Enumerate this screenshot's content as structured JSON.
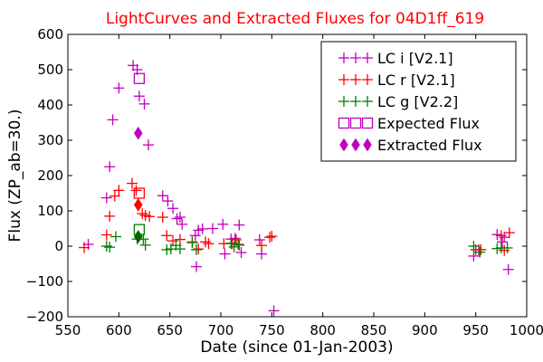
{
  "chart_data": {
    "type": "scatter",
    "title": "LightCurves and Extracted Fluxes for 04D1ff_619",
    "title_color": "#ff0000",
    "xlabel": "Date (since 01-Jan-2003)",
    "ylabel": "Flux (ZP_ab=30.)",
    "xlim": [
      550,
      1000
    ],
    "ylim": [
      -200,
      600
    ],
    "xticks": [
      550,
      600,
      650,
      700,
      750,
      800,
      850,
      900,
      950,
      1000
    ],
    "yticks": [
      -200,
      -100,
      0,
      100,
      200,
      300,
      400,
      500,
      600
    ],
    "grid": false,
    "legend_position": "top-right",
    "series": [
      {
        "name": "LC i [V2.1]",
        "marker": "plus",
        "color": "#bf00bf",
        "points": [
          [
            570,
            5
          ],
          [
            588,
            137
          ],
          [
            591,
            225
          ],
          [
            594,
            358
          ],
          [
            600,
            448
          ],
          [
            614,
            512
          ],
          [
            618,
            500
          ],
          [
            620,
            425
          ],
          [
            625,
            403
          ],
          [
            629,
            287
          ],
          [
            643,
            143
          ],
          [
            648,
            128
          ],
          [
            653,
            107
          ],
          [
            657,
            78
          ],
          [
            660,
            82
          ],
          [
            662,
            62
          ],
          [
            675,
            30
          ],
          [
            676,
            -58
          ],
          [
            678,
            45
          ],
          [
            682,
            49
          ],
          [
            692,
            50
          ],
          [
            702,
            62
          ],
          [
            704,
            -22
          ],
          [
            710,
            20
          ],
          [
            714,
            22
          ],
          [
            718,
            60
          ],
          [
            720,
            -18
          ],
          [
            738,
            18
          ],
          [
            740,
            -22
          ],
          [
            752,
            -183
          ],
          [
            948,
            -28
          ],
          [
            953,
            -10
          ],
          [
            971,
            33
          ],
          [
            976,
            12
          ],
          [
            978,
            25
          ],
          [
            982,
            -66
          ]
        ]
      },
      {
        "name": "LC r [V2.1]",
        "marker": "plus",
        "color": "#ff0000",
        "points": [
          [
            566,
            -4
          ],
          [
            588,
            32
          ],
          [
            591,
            85
          ],
          [
            596,
            142
          ],
          [
            600,
            158
          ],
          [
            613,
            178
          ],
          [
            617,
            158
          ],
          [
            623,
            92
          ],
          [
            626,
            87
          ],
          [
            630,
            84
          ],
          [
            643,
            82
          ],
          [
            647,
            30
          ],
          [
            653,
            15
          ],
          [
            660,
            19
          ],
          [
            672,
            12
          ],
          [
            678,
            -8
          ],
          [
            685,
            12
          ],
          [
            688,
            7
          ],
          [
            703,
            7
          ],
          [
            711,
            7
          ],
          [
            715,
            18
          ],
          [
            718,
            3
          ],
          [
            740,
            2
          ],
          [
            748,
            25
          ],
          [
            750,
            28
          ],
          [
            950,
            -10
          ],
          [
            955,
            -10
          ],
          [
            975,
            30
          ],
          [
            978,
            -12
          ],
          [
            983,
            38
          ]
        ]
      },
      {
        "name": "LC g [V2.2]",
        "marker": "plus",
        "color": "#008000",
        "points": [
          [
            588,
            0
          ],
          [
            591,
            -3
          ],
          [
            597,
            27
          ],
          [
            618,
            20
          ],
          [
            624,
            20
          ],
          [
            626,
            3
          ],
          [
            647,
            -10
          ],
          [
            651,
            -8
          ],
          [
            656,
            2
          ],
          [
            660,
            -8
          ],
          [
            672,
            10
          ],
          [
            676,
            -10
          ],
          [
            710,
            8
          ],
          [
            713,
            -2
          ],
          [
            717,
            5
          ],
          [
            948,
            0
          ],
          [
            954,
            -17
          ],
          [
            971,
            -7
          ],
          [
            975,
            -5
          ],
          [
            981,
            -5
          ]
        ]
      },
      {
        "name": "Expected Flux",
        "marker": "square",
        "points": [
          [
            620,
            475,
            "#bf00bf"
          ],
          [
            620,
            150,
            "#ff0000"
          ],
          [
            620,
            47,
            "#008000"
          ]
        ]
      },
      {
        "name": "Extracted Flux",
        "marker": "diamond",
        "points": [
          [
            619,
            320,
            "#bf00bf"
          ],
          [
            619,
            117,
            "#ff0000"
          ],
          [
            619,
            27,
            "#006400"
          ]
        ]
      }
    ]
  }
}
